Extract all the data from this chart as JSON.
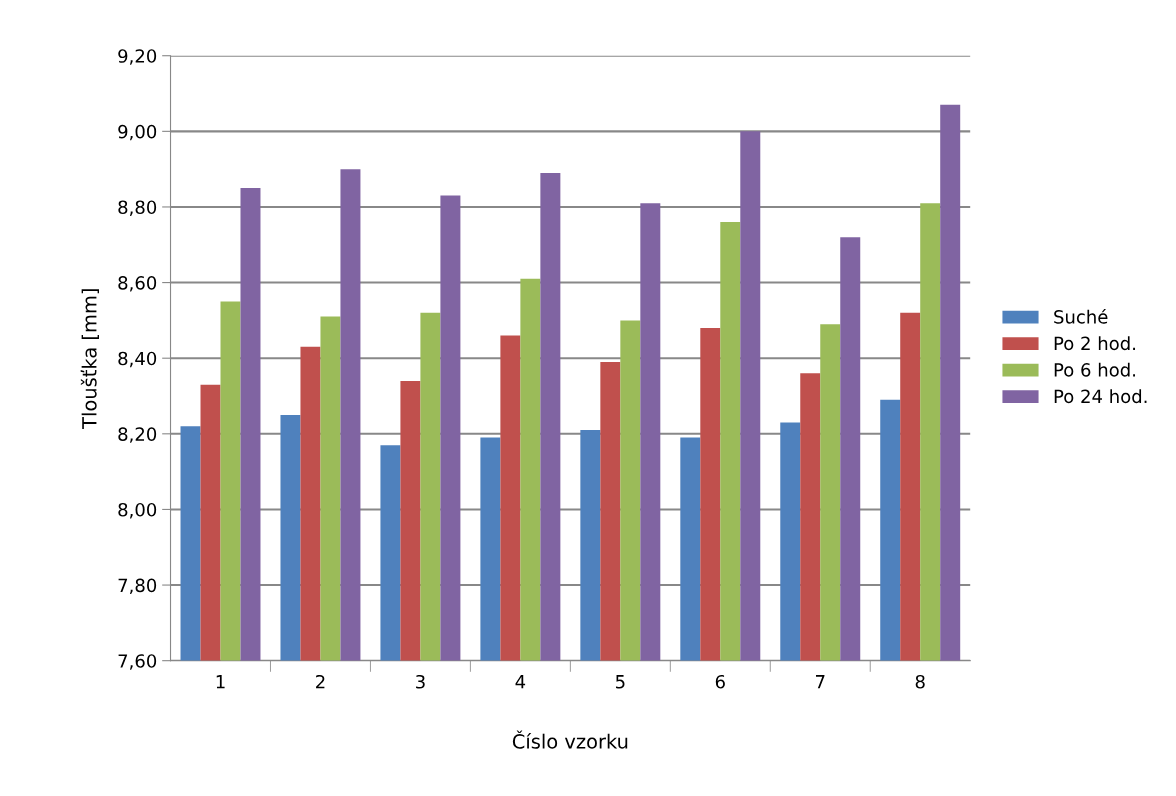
{
  "chart_data": {
    "type": "bar",
    "xlabel": "Číslo vzorku",
    "ylabel": "Tloušťka [mm]",
    "categories": [
      "1",
      "2",
      "3",
      "4",
      "5",
      "6",
      "7",
      "8"
    ],
    "series": [
      {
        "name": "Suché",
        "color": "#4f81bd",
        "values": [
          8.22,
          8.25,
          8.17,
          8.19,
          8.21,
          8.19,
          8.23,
          8.29
        ]
      },
      {
        "name": "Po 2 hod.",
        "color": "#c0504d",
        "values": [
          8.33,
          8.43,
          8.34,
          8.46,
          8.39,
          8.48,
          8.36,
          8.52
        ]
      },
      {
        "name": "Po 6 hod.",
        "color": "#9bbb59",
        "values": [
          8.55,
          8.51,
          8.52,
          8.61,
          8.5,
          8.76,
          8.49,
          8.81
        ]
      },
      {
        "name": "Po 24 hod.",
        "color": "#8064a2",
        "values": [
          8.85,
          8.9,
          8.83,
          8.89,
          8.81,
          9.0,
          8.72,
          9.07
        ]
      }
    ],
    "ylim": [
      7.6,
      9.2
    ],
    "yticks": [
      {
        "value": 7.6,
        "label": "7,60"
      },
      {
        "value": 7.8,
        "label": "7,80"
      },
      {
        "value": 8.0,
        "label": "8,00"
      },
      {
        "value": 8.2,
        "label": "8,20"
      },
      {
        "value": 8.4,
        "label": "8,40"
      },
      {
        "value": 8.6,
        "label": "8,60"
      },
      {
        "value": 8.8,
        "label": "8,80"
      },
      {
        "value": 9.0,
        "label": "9,00"
      },
      {
        "value": 9.2,
        "label": "9,20"
      }
    ],
    "grid": "y",
    "legend": "right"
  }
}
